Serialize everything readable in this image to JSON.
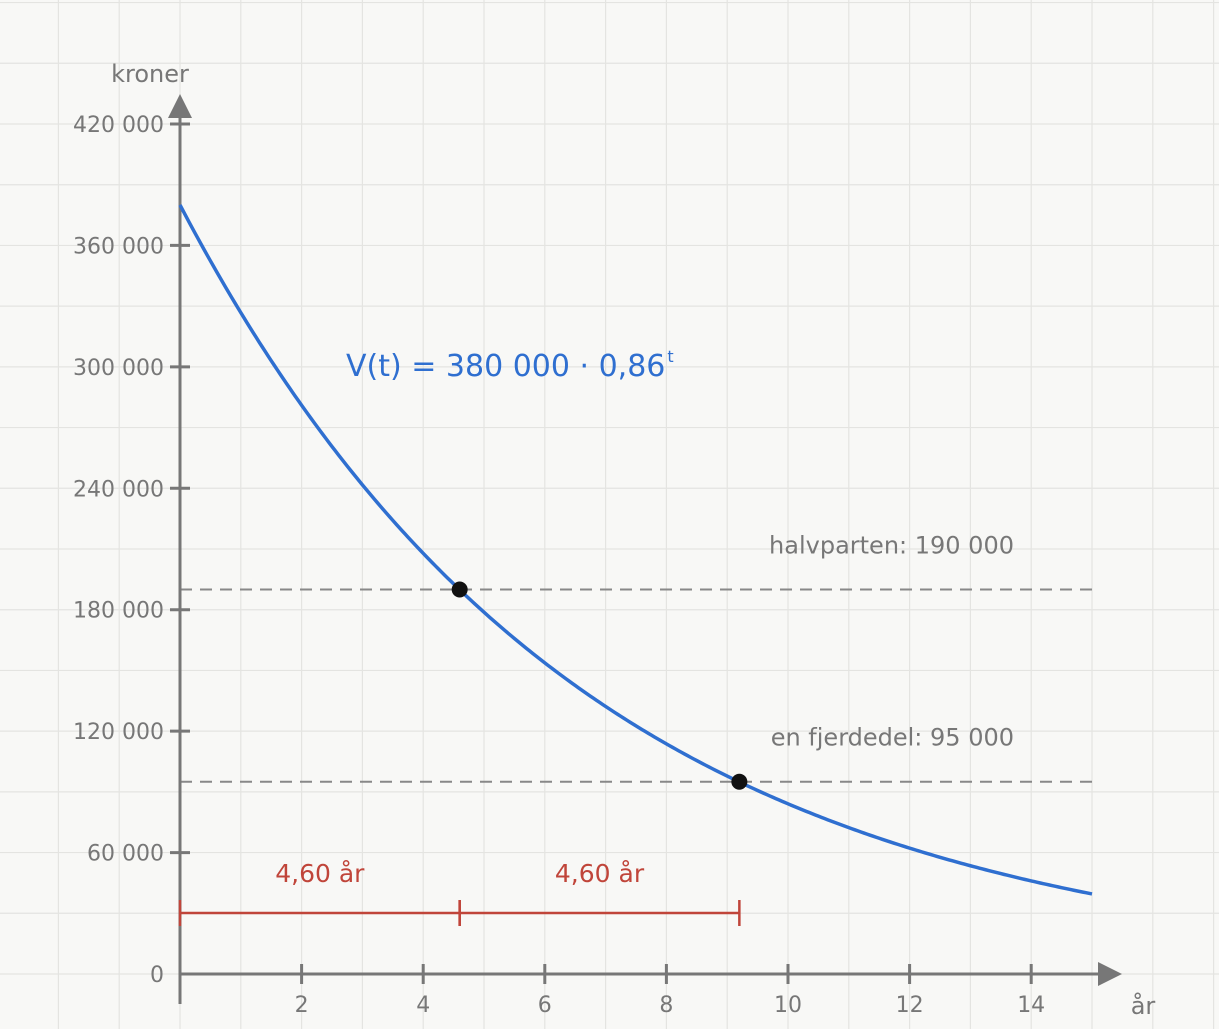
{
  "chart_data": {
    "type": "line",
    "xlabel": "år",
    "ylabel": "kroner",
    "xlim": [
      0,
      15
    ],
    "ylim": [
      0,
      420000
    ],
    "x_ticks": [
      {
        "value": 2,
        "label": "2"
      },
      {
        "value": 4,
        "label": "4"
      },
      {
        "value": 6,
        "label": "6"
      },
      {
        "value": 8,
        "label": "8"
      },
      {
        "value": 10,
        "label": "10"
      },
      {
        "value": 12,
        "label": "12"
      },
      {
        "value": 14,
        "label": "14"
      }
    ],
    "y_ticks": [
      {
        "value": 0,
        "label": "0"
      },
      {
        "value": 60000,
        "label": "60 000"
      },
      {
        "value": 120000,
        "label": "120 000"
      },
      {
        "value": 180000,
        "label": "180 000"
      },
      {
        "value": 240000,
        "label": "240 000"
      },
      {
        "value": 300000,
        "label": "300 000"
      },
      {
        "value": 360000,
        "label": "360 000"
      },
      {
        "value": 420000,
        "label": "420 000"
      }
    ],
    "grid": true,
    "curve": {
      "formula_main": "V(t) = 380 000 · 0,86",
      "formula_exponent": "t",
      "initial_value": 380000,
      "growth_factor": 0.86,
      "x_range": [
        0,
        15
      ],
      "color": "#2f6fd0"
    },
    "reference_lines": [
      {
        "label": "halvparten: 190 000",
        "y": 190000
      },
      {
        "label": "en fjerdedel: 95 000",
        "y": 95000
      }
    ],
    "points": [
      {
        "x": 4.6,
        "y": 190000
      },
      {
        "x": 9.2,
        "y": 95000
      }
    ],
    "intervals": [
      {
        "label": "4,60 år",
        "x_start": 0,
        "x_end": 4.6
      },
      {
        "label": "4,60 år",
        "x_start": 4.6,
        "x_end": 9.2
      }
    ],
    "interval_color": "#c0453a"
  }
}
